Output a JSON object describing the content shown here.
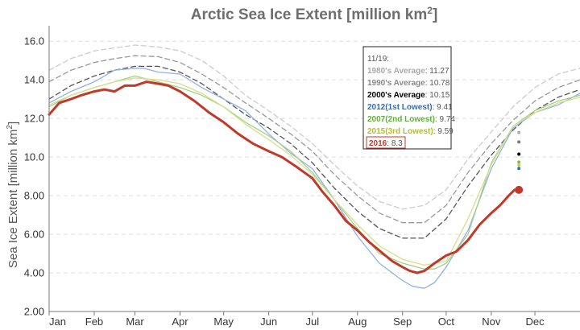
{
  "chart_data": {
    "type": "line",
    "title_main": "Arctic Sea Ice Extent [million km",
    "title_sup": "2",
    "title_end": "]",
    "ylabel_main": "Sea Ice Extent [million km",
    "ylabel_sup": "2",
    "ylabel_end": "]",
    "ylim": [
      2.0,
      16.8
    ],
    "yticks": [
      "2.00",
      "4.00",
      "6.00",
      "8.00",
      "10.0",
      "12.0",
      "14.0",
      "16.0"
    ],
    "ytick_values": [
      2,
      4,
      6,
      8,
      10,
      12,
      14,
      16
    ],
    "xlim": [
      0,
      365
    ],
    "months": [
      "Jan",
      "Feb",
      "Mar",
      "Apr",
      "May",
      "Jun",
      "Jul",
      "Aug",
      "Sep",
      "Oct",
      "Nov",
      "Dec"
    ],
    "month_days": [
      0,
      31,
      59,
      90,
      120,
      151,
      181,
      212,
      243,
      273,
      304,
      334
    ],
    "series": [
      {
        "name": "1980's Average",
        "color": "#cccccc",
        "dash": "6,4",
        "width": 1.3,
        "x": [
          0,
          15,
          31,
          45,
          59,
          75,
          90,
          105,
          120,
          135,
          151,
          166,
          181,
          196,
          212,
          227,
          243,
          258,
          273,
          288,
          304,
          319,
          334,
          350,
          365
        ],
        "y": [
          14.5,
          15.1,
          15.5,
          15.65,
          15.8,
          15.7,
          15.5,
          15.0,
          14.2,
          13.2,
          12.4,
          11.6,
          10.7,
          9.6,
          8.5,
          7.7,
          7.3,
          7.5,
          8.3,
          9.9,
          11.3,
          12.6,
          13.6,
          14.3,
          14.6
        ]
      },
      {
        "name": "1990's Average",
        "color": "#999999",
        "dash": "6,4",
        "width": 1.3,
        "x": [
          0,
          15,
          31,
          45,
          59,
          75,
          90,
          105,
          120,
          135,
          151,
          166,
          181,
          196,
          212,
          227,
          243,
          258,
          273,
          288,
          304,
          319,
          334,
          350,
          365
        ],
        "y": [
          13.9,
          14.5,
          14.9,
          15.1,
          15.25,
          15.2,
          14.9,
          14.3,
          13.6,
          12.8,
          12.0,
          11.2,
          10.3,
          9.1,
          8.0,
          7.1,
          6.6,
          6.6,
          7.5,
          9.2,
          10.7,
          11.9,
          12.9,
          13.6,
          14.0
        ]
      },
      {
        "name": "2000's Average",
        "color": "#555555",
        "dash": "6,4",
        "width": 1.3,
        "x": [
          0,
          15,
          31,
          45,
          59,
          75,
          90,
          105,
          120,
          135,
          151,
          166,
          181,
          196,
          212,
          227,
          243,
          258,
          273,
          288,
          304,
          319,
          334,
          350,
          365
        ],
        "y": [
          13.0,
          13.7,
          14.2,
          14.5,
          14.7,
          14.7,
          14.4,
          13.8,
          13.0,
          12.2,
          11.5,
          10.7,
          9.7,
          8.4,
          7.2,
          6.3,
          5.8,
          5.8,
          6.8,
          8.5,
          10.1,
          11.4,
          12.4,
          13.1,
          13.5
        ]
      },
      {
        "name": "2012(1st Lowest)",
        "color": "#8fb3e3",
        "dash": "",
        "width": 1.3,
        "x": [
          0,
          15,
          31,
          45,
          59,
          65,
          75,
          90,
          105,
          120,
          135,
          151,
          166,
          181,
          196,
          212,
          227,
          243,
          250,
          258,
          265,
          273,
          288,
          304,
          319,
          334,
          350,
          365
        ],
        "y": [
          12.8,
          13.4,
          13.9,
          14.5,
          14.6,
          14.6,
          14.4,
          14.3,
          13.6,
          13.0,
          12.4,
          11.2,
          10.2,
          9.4,
          7.8,
          5.9,
          4.5,
          3.6,
          3.3,
          3.2,
          3.5,
          4.3,
          6.2,
          9.4,
          11.5,
          12.3,
          12.7,
          13.3
        ]
      },
      {
        "name": "2007(2nd Lowest)",
        "color": "#a6d08a",
        "dash": "",
        "width": 1.3,
        "x": [
          0,
          15,
          31,
          45,
          59,
          75,
          90,
          105,
          120,
          135,
          151,
          166,
          181,
          196,
          212,
          227,
          243,
          258,
          265,
          273,
          288,
          304,
          319,
          334,
          350,
          365
        ],
        "y": [
          12.6,
          13.2,
          13.6,
          13.9,
          14.2,
          13.9,
          13.6,
          13.2,
          12.6,
          11.8,
          11.1,
          10.3,
          9.2,
          7.8,
          6.3,
          5.0,
          4.5,
          4.2,
          4.2,
          4.5,
          6.0,
          9.7,
          11.6,
          12.4,
          12.9,
          13.2
        ]
      },
      {
        "name": "2015(3rd Lowest)",
        "color": "#d8df8a",
        "dash": "",
        "width": 1.3,
        "x": [
          0,
          15,
          31,
          45,
          59,
          75,
          90,
          105,
          120,
          135,
          151,
          166,
          181,
          196,
          212,
          227,
          243,
          258,
          273,
          288,
          304,
          319,
          334,
          350,
          365
        ],
        "y": [
          12.7,
          13.2,
          13.6,
          13.9,
          14.1,
          14.0,
          13.8,
          13.3,
          12.6,
          11.7,
          10.9,
          10.1,
          9.1,
          7.8,
          6.5,
          5.4,
          4.7,
          4.4,
          4.6,
          6.8,
          9.6,
          11.6,
          12.3,
          12.8,
          13.1
        ]
      },
      {
        "name": "2016",
        "color": "#c0392b",
        "dash": "",
        "width": 3,
        "x": [
          0,
          7,
          15,
          22,
          31,
          38,
          45,
          52,
          59,
          67,
          75,
          82,
          90,
          100,
          110,
          120,
          130,
          140,
          151,
          160,
          170,
          181,
          188,
          196,
          204,
          212,
          220,
          228,
          236,
          243,
          248,
          253,
          258,
          265,
          273,
          280,
          288,
          296,
          304,
          310,
          316,
          320,
          323
        ],
        "y": [
          12.2,
          12.8,
          13.0,
          13.2,
          13.4,
          13.5,
          13.4,
          13.7,
          13.7,
          13.9,
          13.8,
          13.7,
          13.4,
          12.9,
          12.3,
          11.8,
          11.2,
          10.7,
          10.3,
          10.0,
          9.5,
          8.9,
          8.2,
          7.5,
          6.7,
          6.2,
          5.6,
          5.1,
          4.6,
          4.3,
          4.1,
          4.0,
          4.1,
          4.5,
          4.9,
          5.1,
          5.7,
          6.5,
          7.1,
          7.5,
          8.0,
          8.3,
          8.3
        ]
      }
    ],
    "endpoints": [
      {
        "x": 323,
        "y": 11.27,
        "color": "#aaaaaa"
      },
      {
        "x": 323,
        "y": 10.78,
        "color": "#777777"
      },
      {
        "x": 323,
        "y": 10.15,
        "color": "#000000"
      },
      {
        "x": 323,
        "y": 9.74,
        "color": "#7bbf4a"
      },
      {
        "x": 323,
        "y": 9.59,
        "color": "#c6d04b"
      },
      {
        "x": 323,
        "y": 9.41,
        "color": "#2a6fc4"
      }
    ],
    "current_marker": {
      "x": 323,
      "y": 8.3,
      "color": "#c0392b"
    }
  },
  "tooltip": {
    "date": "11/19:",
    "rows": [
      {
        "label": "1980's Average",
        "value": "11.27",
        "color": "#aaaaaa"
      },
      {
        "label": "1990's Average",
        "value": "10.78",
        "color": "#888888"
      },
      {
        "label": "2000's Average",
        "value": "10.15",
        "color": "#000000"
      },
      {
        "label": "2012(1st Lowest)",
        "value": "9.41",
        "color": "#2a6fc4"
      },
      {
        "label": "2007(2nd Lowest)",
        "value": "9.74",
        "color": "#5fb03a"
      },
      {
        "label": "2015(3rd Lowest)",
        "value": "9.59",
        "color": "#b5bd2a"
      }
    ],
    "current": {
      "label": "2016",
      "value": "8.3",
      "color": "#c0392b"
    }
  }
}
